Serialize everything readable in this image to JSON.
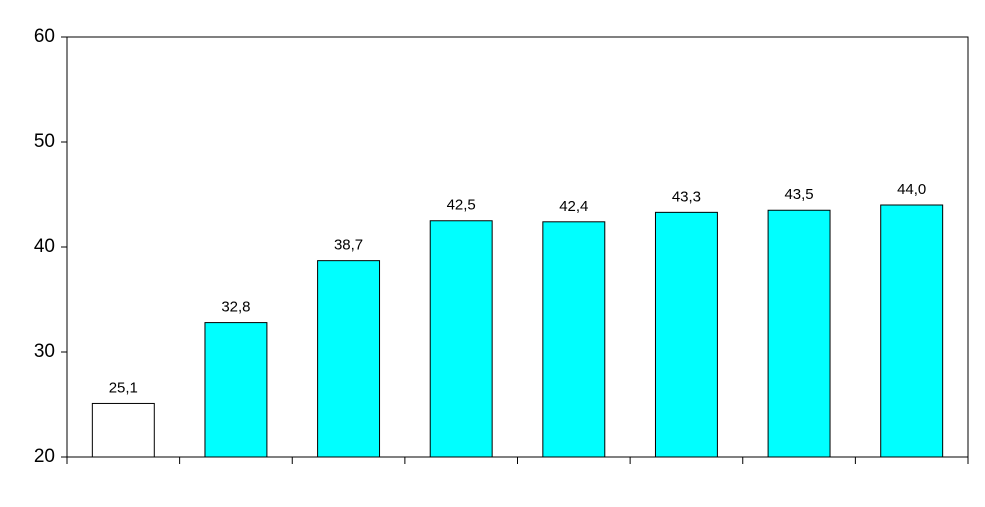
{
  "chart_data": {
    "type": "bar",
    "categories": [
      null,
      null,
      null,
      null,
      null,
      null,
      null,
      null
    ],
    "values": [
      25.1,
      32.8,
      38.7,
      42.5,
      42.4,
      43.3,
      43.5,
      44.0
    ],
    "value_labels": [
      "25,1",
      "32,8",
      "38,7",
      "42,5",
      "42,4",
      "43,3",
      "43,5",
      "44,0"
    ],
    "colors": [
      "#ffffff",
      "#00ffff",
      "#00ffff",
      "#00ffff",
      "#00ffff",
      "#00ffff",
      "#00ffff",
      "#00ffff"
    ],
    "ylim": [
      20,
      60
    ],
    "yticks": [
      20,
      30,
      40,
      50,
      60
    ],
    "grid": false
  }
}
